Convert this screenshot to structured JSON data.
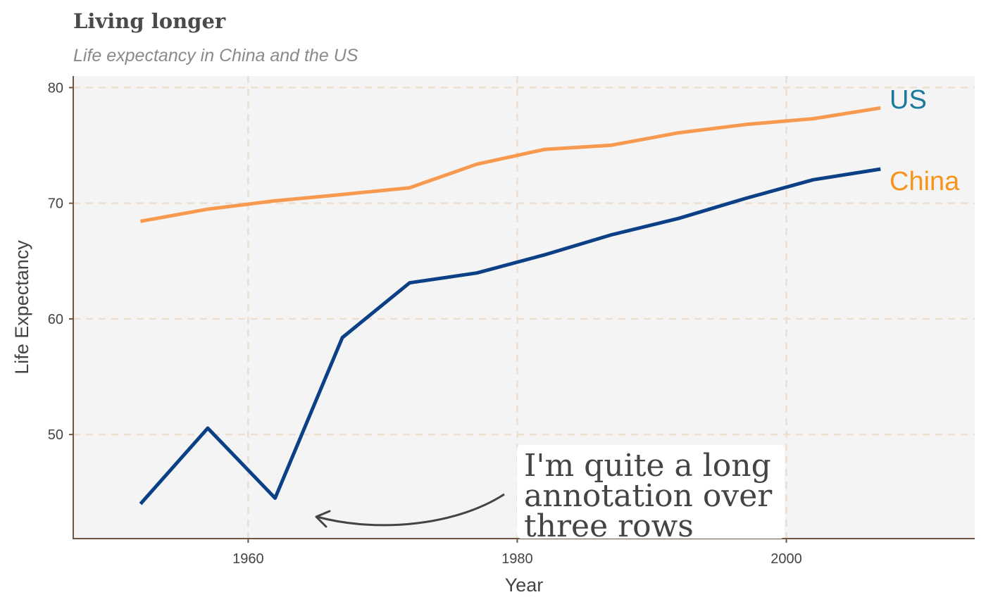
{
  "chart_data": {
    "type": "line",
    "title": "Living longer",
    "subtitle": "Life expectancy in China and the US",
    "xlabel": "Year",
    "ylabel": "Life Expectancy",
    "xlim": [
      1947,
      2014
    ],
    "ylim": [
      41,
      81
    ],
    "x_ticks": [
      1960,
      1980,
      2000
    ],
    "y_ticks": [
      50,
      60,
      70,
      80
    ],
    "grid": true,
    "x": [
      1952,
      1957,
      1962,
      1967,
      1972,
      1977,
      1982,
      1987,
      1992,
      1997,
      2002,
      2007
    ],
    "series": [
      {
        "name": "US",
        "key": "us",
        "values": [
          68.44,
          69.49,
          70.21,
          70.76,
          71.34,
          73.38,
          74.65,
          75.02,
          76.09,
          76.81,
          77.31,
          78.24
        ]
      },
      {
        "name": "China",
        "key": "china",
        "values": [
          44.0,
          50.55,
          44.5,
          58.38,
          63.12,
          63.97,
          65.53,
          67.27,
          68.69,
          70.43,
          72.03,
          72.96
        ]
      }
    ],
    "direct_labels": [
      {
        "text": "US",
        "color": "#1a7a9e"
      },
      {
        "text": "China",
        "color": "#f7941d"
      }
    ],
    "annotation": {
      "lines": [
        "I'm quite a long",
        "annotation over",
        "three rows"
      ]
    },
    "colors": {
      "us_line": "#f79a50",
      "china_line": "#0b3f86",
      "panel_background": "#f4f4f4",
      "grid": "#ecdfd2",
      "axis": "#6d5646"
    }
  }
}
